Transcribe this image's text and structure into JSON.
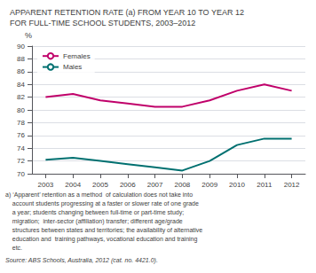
{
  "chart_data": {
    "type": "line",
    "title": "APPARENT RETENTION RATE (a) FROM YEAR 10 TO YEAR 12",
    "subtitle": "FOR FULL-TIME SCHOOL STUDENTS, 2003–2012",
    "x": [
      2003,
      2004,
      2005,
      2006,
      2007,
      2008,
      2009,
      2010,
      2011,
      2012
    ],
    "series": [
      {
        "name": "Females",
        "color": "#c0006a",
        "values": [
          82.0,
          82.5,
          81.5,
          81.0,
          80.5,
          80.5,
          81.5,
          83.0,
          84.0,
          83.0
        ]
      },
      {
        "name": "Males",
        "color": "#007070",
        "values": [
          72.2,
          72.5,
          72.0,
          71.5,
          71.0,
          70.5,
          72.0,
          74.5,
          75.5,
          75.5
        ]
      }
    ],
    "xlim": [
      2002.5,
      2012.5
    ],
    "xticks": [
      2003,
      2004,
      2005,
      2006,
      2007,
      2008,
      2009,
      2010,
      2011,
      2012
    ],
    "ylim": [
      70,
      90
    ],
    "yticks": [
      70,
      72,
      74,
      76,
      78,
      80,
      82,
      84,
      86,
      88,
      90
    ],
    "ylabel": "%",
    "grid": true,
    "legend": "upper left",
    "annotations": [
      "a) ‘Apparent’ retention as a method  of calculation does not take into",
      "    account students progressing at a faster or slower rate of one grade",
      "    a year; students changing between full-time or part-time study;",
      "    migration;  inter-sector (affiliation) transfer; different age/grade",
      "    structures between states and territories; the availability of alternative",
      "    education and  training pathways, vocational education and training",
      "    etc."
    ],
    "source": "Source: ABS Schools, Australia, 2012 (cat. no. 4421.0)."
  }
}
